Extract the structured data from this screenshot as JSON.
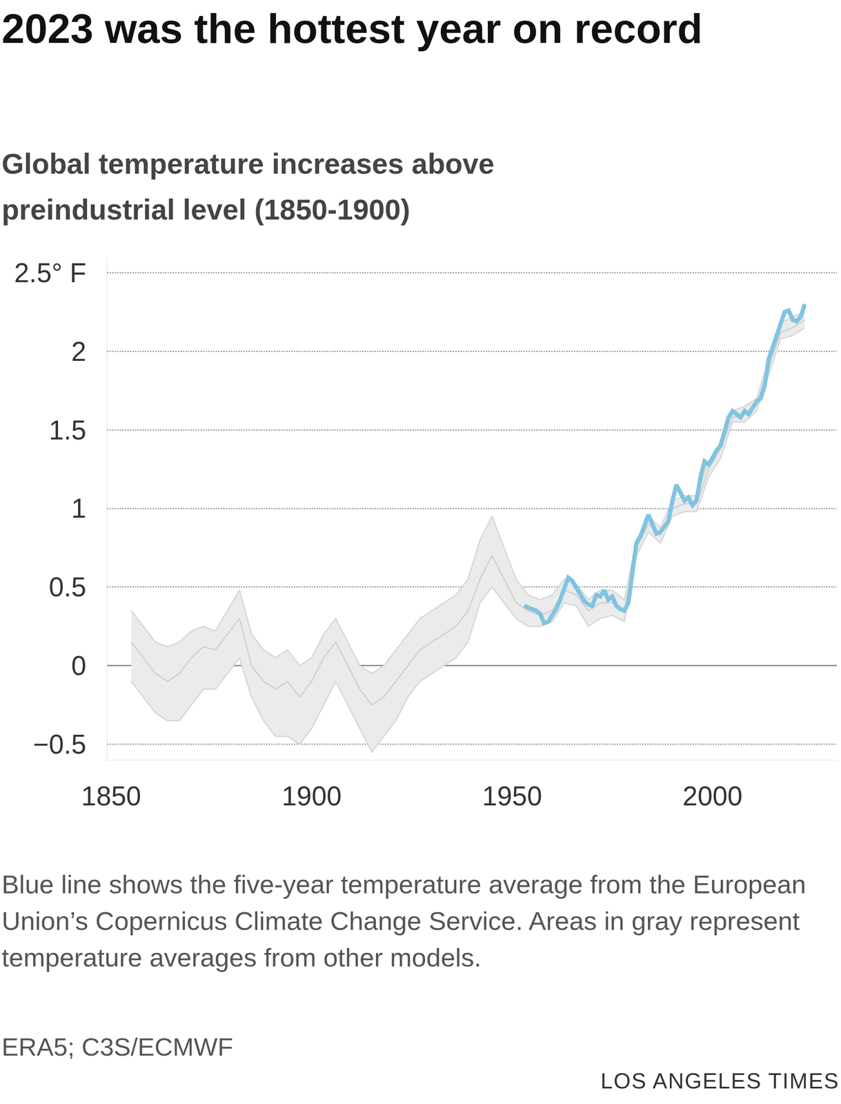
{
  "chart_data": {
    "type": "line",
    "title": "2023 was the hottest year on record",
    "subtitle": "Global temperature increases above preindustrial level (1850-1900)",
    "note": "Blue line shows the five-year temperature average from the European Union’s Copernicus Climate Change Service. Areas in gray represent temperature averages from other models.",
    "source": "ERA5; C3S/ECMWF",
    "credit": "LOS ANGELES TIMES",
    "xlim": [
      1849,
      2031
    ],
    "xticks": [
      1850,
      1900,
      1950,
      2000
    ],
    "ylim": [
      -0.6,
      2.6
    ],
    "yticks": [
      {
        "value": -0.5,
        "label": "−0.5"
      },
      0,
      0.5,
      1,
      1.5,
      2,
      {
        "value": 2.5,
        "label": "2.5° F"
      }
    ],
    "grid": true,
    "band": {
      "color": "#ebebeb",
      "x": [
        1855,
        1858,
        1861,
        1864,
        1867,
        1870,
        1873,
        1876,
        1879,
        1882,
        1885,
        1888,
        1891,
        1894,
        1897,
        1900,
        1903,
        1906,
        1909,
        1912,
        1915,
        1918,
        1921,
        1924,
        1927,
        1930,
        1933,
        1936,
        1939,
        1942,
        1945,
        1948,
        1951,
        1954,
        1957,
        1960,
        1963,
        1966,
        1969,
        1972,
        1975,
        1978,
        1981,
        1984,
        1987,
        1990,
        1993,
        1996,
        1999,
        2002,
        2005,
        2008,
        2011,
        2014,
        2017,
        2020,
        2023
      ],
      "upper": [
        0.35,
        0.25,
        0.15,
        0.12,
        0.15,
        0.22,
        0.25,
        0.22,
        0.35,
        0.48,
        0.2,
        0.1,
        0.05,
        0.1,
        0.0,
        0.05,
        0.2,
        0.3,
        0.15,
        0.0,
        -0.05,
        0.0,
        0.1,
        0.2,
        0.3,
        0.35,
        0.4,
        0.45,
        0.55,
        0.8,
        0.95,
        0.75,
        0.55,
        0.45,
        0.42,
        0.45,
        0.55,
        0.52,
        0.42,
        0.48,
        0.48,
        0.42,
        0.8,
        0.95,
        0.88,
        1.05,
        1.08,
        1.08,
        1.3,
        1.42,
        1.62,
        1.65,
        1.7,
        1.95,
        2.18,
        2.22,
        2.25
      ],
      "lower": [
        -0.1,
        -0.2,
        -0.3,
        -0.35,
        -0.35,
        -0.25,
        -0.15,
        -0.15,
        -0.05,
        0.05,
        -0.2,
        -0.35,
        -0.45,
        -0.45,
        -0.5,
        -0.4,
        -0.25,
        -0.1,
        -0.25,
        -0.4,
        -0.55,
        -0.45,
        -0.35,
        -0.2,
        -0.1,
        -0.05,
        0.0,
        0.05,
        0.15,
        0.4,
        0.5,
        0.4,
        0.3,
        0.25,
        0.25,
        0.28,
        0.4,
        0.38,
        0.25,
        0.3,
        0.32,
        0.28,
        0.7,
        0.85,
        0.78,
        0.95,
        0.98,
        0.98,
        1.2,
        1.32,
        1.55,
        1.55,
        1.62,
        1.85,
        2.08,
        2.1,
        2.15
      ]
    },
    "series": [
      {
        "color": "#cfcfcf",
        "x": [
          1855,
          1858,
          1861,
          1864,
          1867,
          1870,
          1873,
          1876,
          1879,
          1882,
          1885,
          1888,
          1891,
          1894,
          1897,
          1900,
          1903,
          1906,
          1909,
          1912,
          1915,
          1918,
          1921,
          1924,
          1927,
          1930,
          1933,
          1936,
          1939,
          1942,
          1945,
          1948,
          1951,
          1954,
          1957,
          1960,
          1963,
          1966,
          1969,
          1972,
          1975,
          1978,
          1981,
          1984,
          1987,
          1990,
          1993,
          1996,
          1999,
          2002,
          2005,
          2008,
          2011,
          2014,
          2017,
          2020,
          2023
        ],
        "values": [
          0.15,
          0.05,
          -0.05,
          -0.1,
          -0.05,
          0.05,
          0.12,
          0.1,
          0.2,
          0.3,
          0.0,
          -0.1,
          -0.15,
          -0.1,
          -0.2,
          -0.1,
          0.05,
          0.15,
          0.0,
          -0.15,
          -0.25,
          -0.2,
          -0.1,
          0.0,
          0.1,
          0.15,
          0.2,
          0.25,
          0.35,
          0.55,
          0.7,
          0.55,
          0.4,
          0.35,
          0.32,
          0.35,
          0.48,
          0.45,
          0.35,
          0.4,
          0.4,
          0.35,
          0.75,
          0.9,
          0.83,
          1.0,
          1.03,
          1.03,
          1.25,
          1.38,
          1.58,
          1.6,
          1.66,
          1.9,
          2.12,
          2.15,
          2.2
        ]
      },
      {
        "color": "#7fc4e0",
        "x": [
          1953,
          1954,
          1955,
          1956,
          1957,
          1958,
          1959,
          1960,
          1961,
          1962,
          1963,
          1964,
          1965,
          1966,
          1967,
          1968,
          1969,
          1970,
          1971,
          1972,
          1973,
          1974,
          1975,
          1976,
          1977,
          1978,
          1979,
          1980,
          1981,
          1982,
          1983,
          1984,
          1985,
          1986,
          1987,
          1988,
          1989,
          1990,
          1991,
          1992,
          1993,
          1994,
          1995,
          1996,
          1997,
          1998,
          1999,
          2000,
          2001,
          2002,
          2003,
          2004,
          2005,
          2006,
          2007,
          2008,
          2009,
          2010,
          2011,
          2012,
          2013,
          2014,
          2015,
          2016,
          2017,
          2018,
          2019,
          2020,
          2021,
          2022,
          2023
        ],
        "values": [
          0.38,
          0.37,
          0.36,
          0.35,
          0.33,
          0.27,
          0.28,
          0.32,
          0.36,
          0.42,
          0.5,
          0.56,
          0.54,
          0.5,
          0.45,
          0.41,
          0.39,
          0.38,
          0.45,
          0.44,
          0.48,
          0.42,
          0.44,
          0.38,
          0.36,
          0.35,
          0.4,
          0.6,
          0.78,
          0.82,
          0.9,
          0.96,
          0.9,
          0.84,
          0.85,
          0.88,
          0.92,
          1.05,
          1.15,
          1.1,
          1.05,
          1.07,
          1.02,
          1.05,
          1.2,
          1.3,
          1.28,
          1.32,
          1.37,
          1.4,
          1.5,
          1.58,
          1.62,
          1.6,
          1.58,
          1.62,
          1.6,
          1.64,
          1.68,
          1.7,
          1.78,
          1.95,
          2.03,
          2.1,
          2.18,
          2.25,
          2.26,
          2.2,
          2.19,
          2.22,
          2.3
        ]
      }
    ]
  }
}
